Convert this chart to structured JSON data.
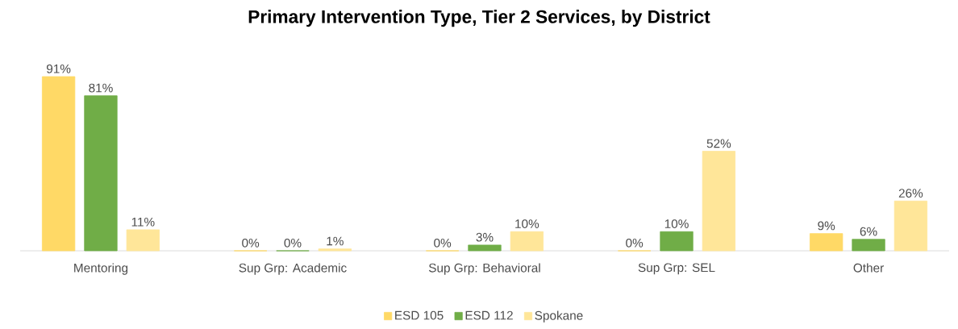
{
  "chart_data": {
    "type": "bar",
    "title": "Primary Intervention Type, Tier 2 Services, by District",
    "categories": [
      "Mentoring",
      "Sup Grp: Academic",
      "Sup Grp: Behavioral",
      "Sup Grp: SEL",
      "Other"
    ],
    "series": [
      {
        "name": "ESD 105",
        "color": "#ffd966",
        "values": [
          91,
          0,
          0,
          0,
          9
        ],
        "value_labels": [
          "91%",
          "0%",
          "0%",
          "0%",
          "9%"
        ]
      },
      {
        "name": "ESD 112",
        "color": "#70ad47",
        "values": [
          81,
          0,
          3,
          10,
          6
        ],
        "value_labels": [
          "81%",
          "0%",
          "3%",
          "10%",
          "6%"
        ]
      },
      {
        "name": "Spokane",
        "color": "#ffe699",
        "values": [
          11,
          1,
          10,
          52,
          26
        ],
        "value_labels": [
          "11%",
          "1%",
          "10%",
          "52%",
          "26%"
        ]
      }
    ],
    "legend": "bottom"
  }
}
